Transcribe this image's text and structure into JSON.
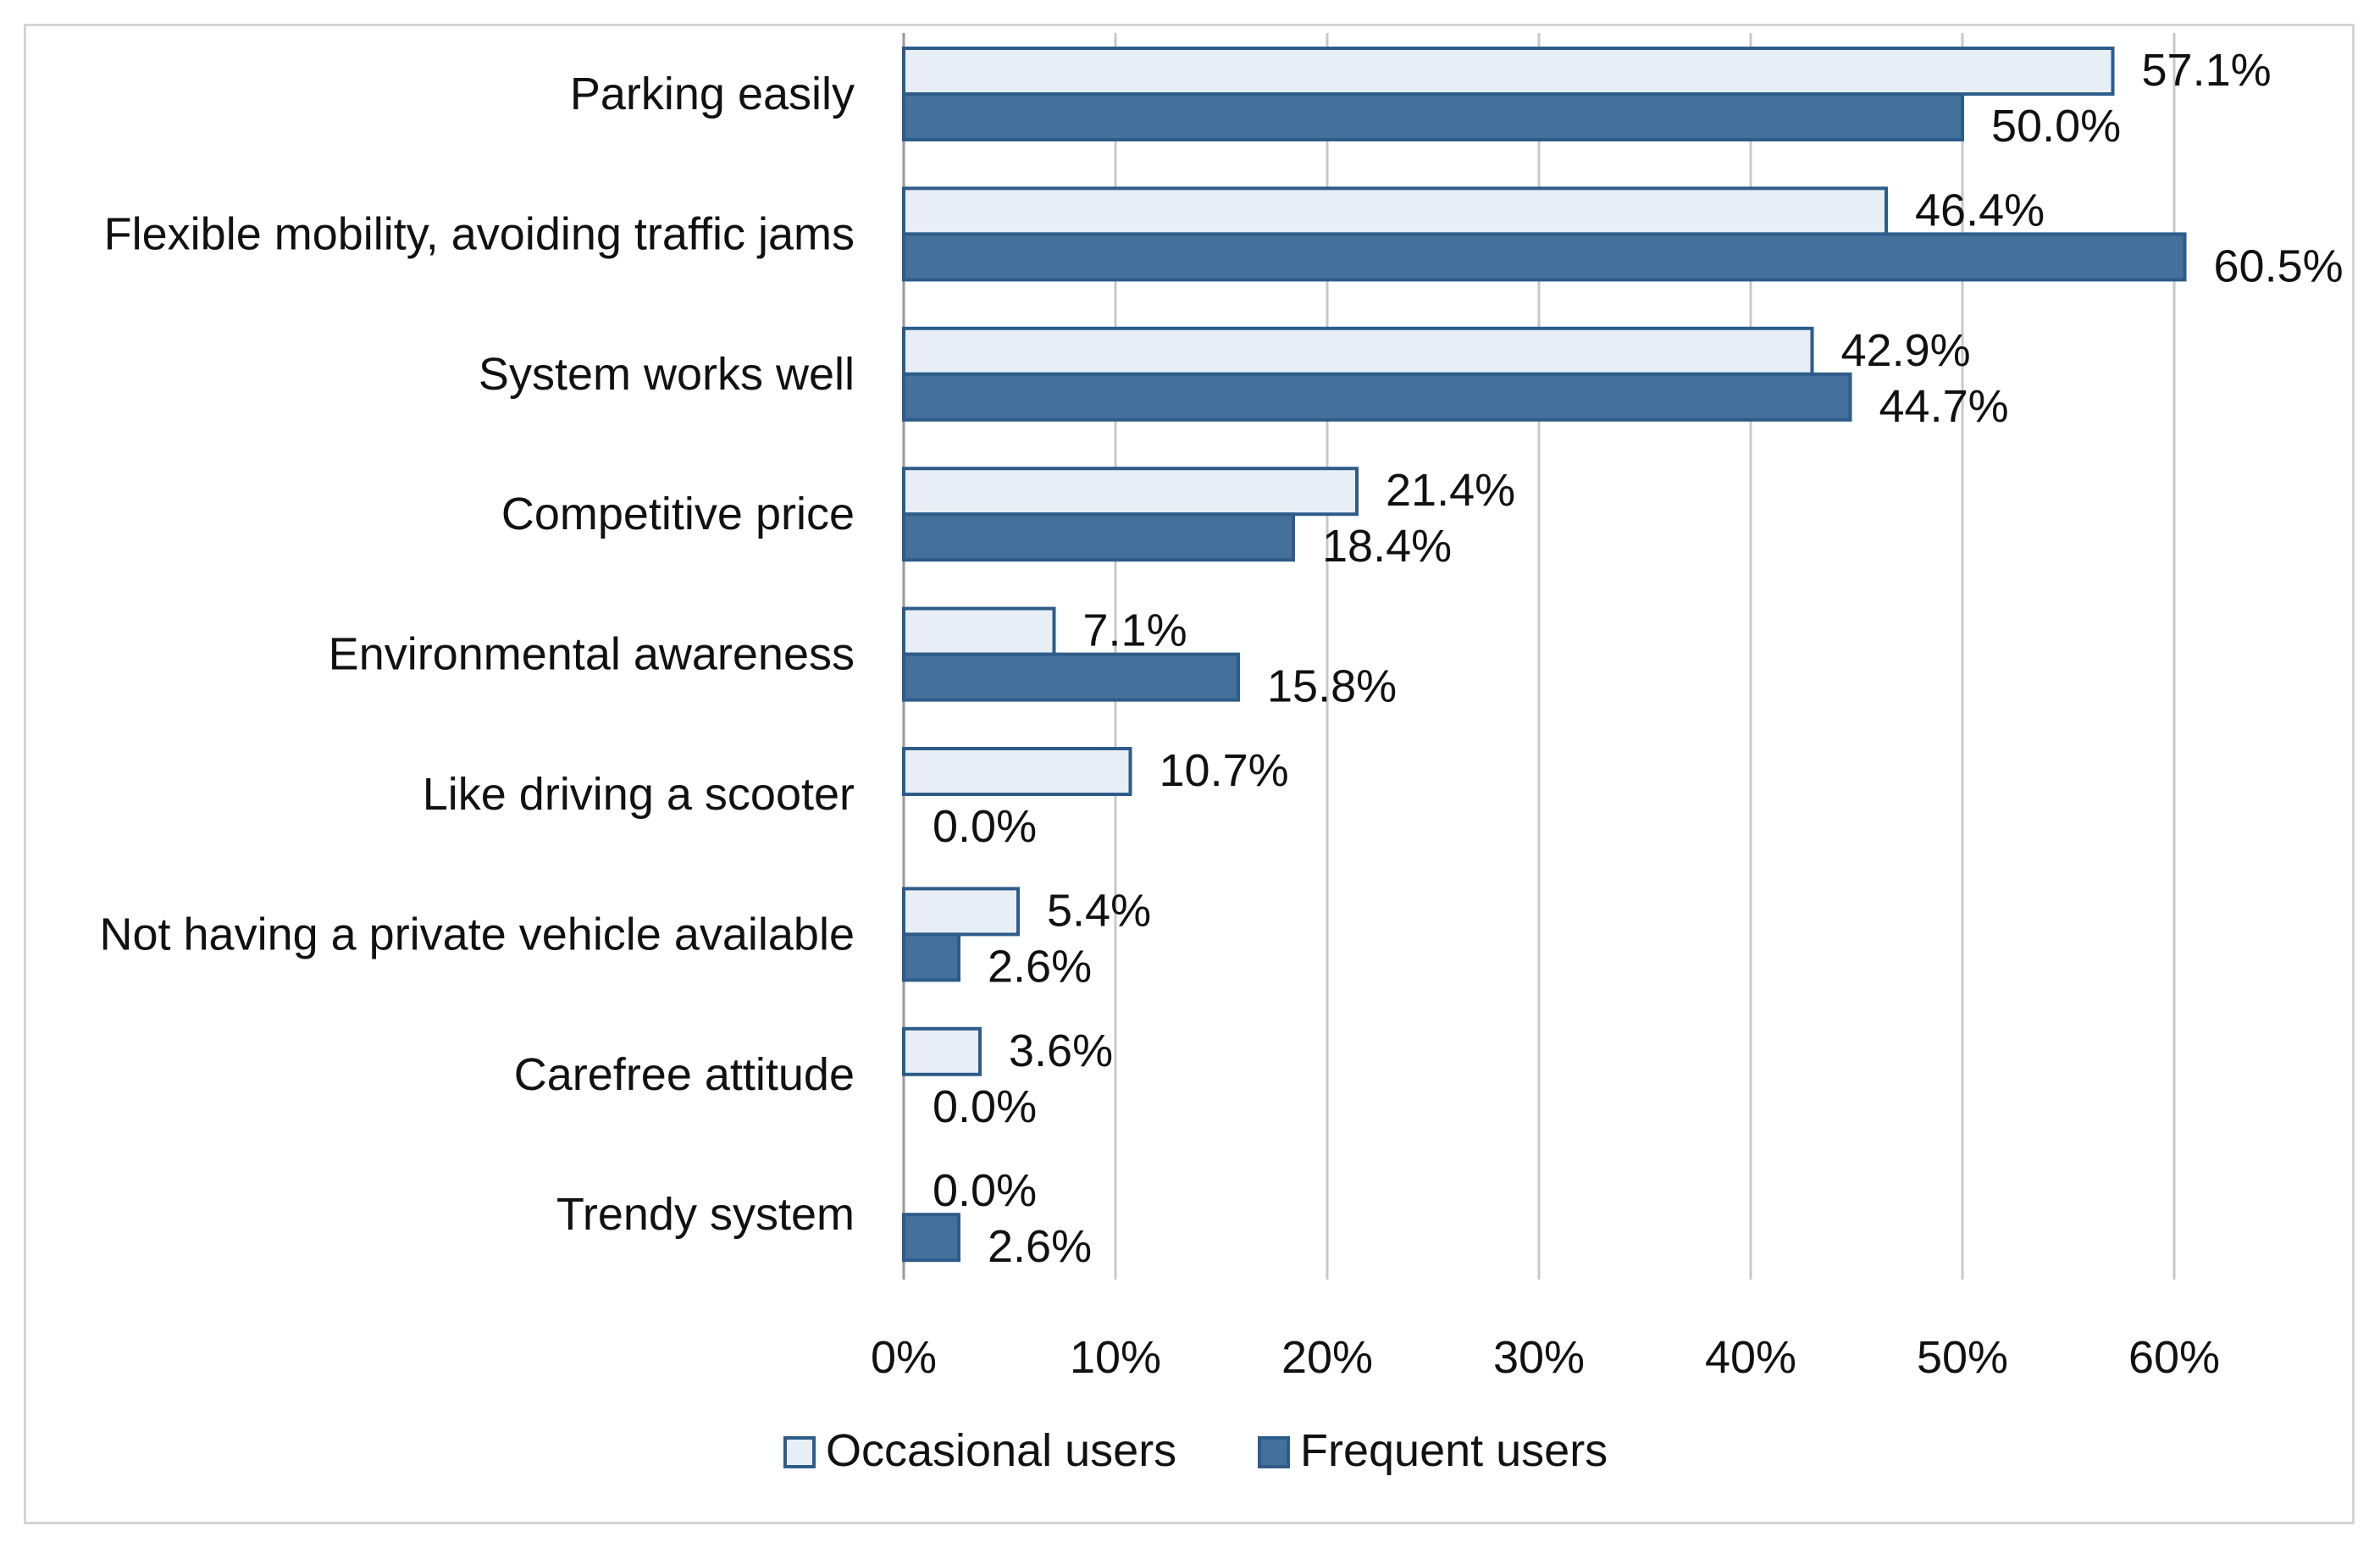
{
  "chart_data": {
    "type": "bar",
    "orientation": "horizontal",
    "categories": [
      "Parking easily",
      "Flexible mobility, avoiding traffic jams",
      "System works well",
      "Competitive price",
      "Environmental awareness",
      "Like driving a scooter",
      "Not having  a private vehicle available",
      "Carefree attitude",
      "Trendy system"
    ],
    "series": [
      {
        "name": "Occasional users",
        "values": [
          57.1,
          46.4,
          42.9,
          21.4,
          7.1,
          10.7,
          5.4,
          3.6,
          0.0
        ],
        "labels": [
          "57.1%",
          "46.4%",
          "42.9%",
          "21.4%",
          "7.1%",
          "10.7%",
          "5.4%",
          "3.6%",
          "0.0%"
        ],
        "fill": "#e8eef6",
        "stroke": "#2e5c8a"
      },
      {
        "name": "Frequent users",
        "values": [
          50.0,
          60.5,
          44.7,
          18.4,
          15.8,
          0.0,
          2.6,
          0.0,
          2.6
        ],
        "labels": [
          "50.0%",
          "60.5%",
          "44.7%",
          "18.4%",
          "15.8%",
          "0.0%",
          "2.6%",
          "0.0%",
          "2.6%"
        ],
        "fill": "#44719c",
        "stroke": "#2e5c8a"
      }
    ],
    "x_ticks": [
      "0%",
      "10%",
      "20%",
      "30%",
      "40%",
      "50%",
      "60%"
    ],
    "xlim": [
      0,
      60
    ],
    "grid": true,
    "legend_position": "bottom",
    "gridline_color": "#c8c8c8"
  }
}
